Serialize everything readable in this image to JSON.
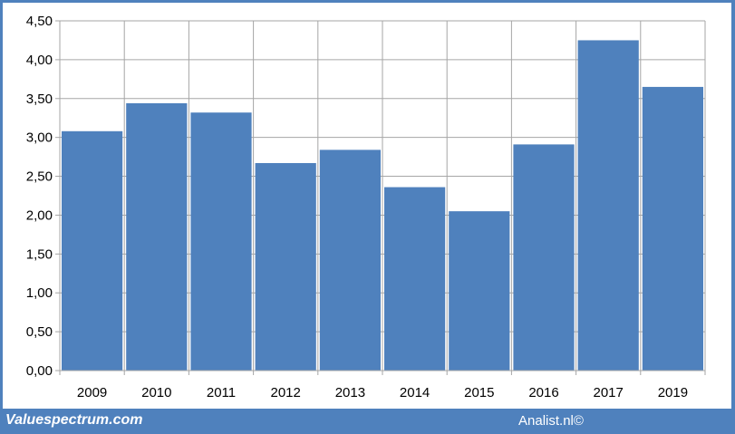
{
  "chart_data": {
    "type": "bar",
    "categories": [
      "2009",
      "2010",
      "2011",
      "2012",
      "2013",
      "2014",
      "2015",
      "2016",
      "2017",
      "2019"
    ],
    "values": [
      3.08,
      3.44,
      3.32,
      2.67,
      2.84,
      2.36,
      2.05,
      2.91,
      4.25,
      3.65
    ],
    "y_ticks": [
      "0,00",
      "0,50",
      "1,00",
      "1,50",
      "2,00",
      "2,50",
      "3,00",
      "3,50",
      "4,00",
      "4,50"
    ],
    "ylim": [
      0,
      4.5
    ],
    "grid": true,
    "bar_color": "#4f81bd",
    "title": "",
    "xlabel": "",
    "ylabel": ""
  },
  "footer": {
    "left_text": "Valuespectrum.com",
    "right_text": "Analist.nl©"
  },
  "colors": {
    "frame": "#4f81bd",
    "grid": "#a6a6a6"
  }
}
